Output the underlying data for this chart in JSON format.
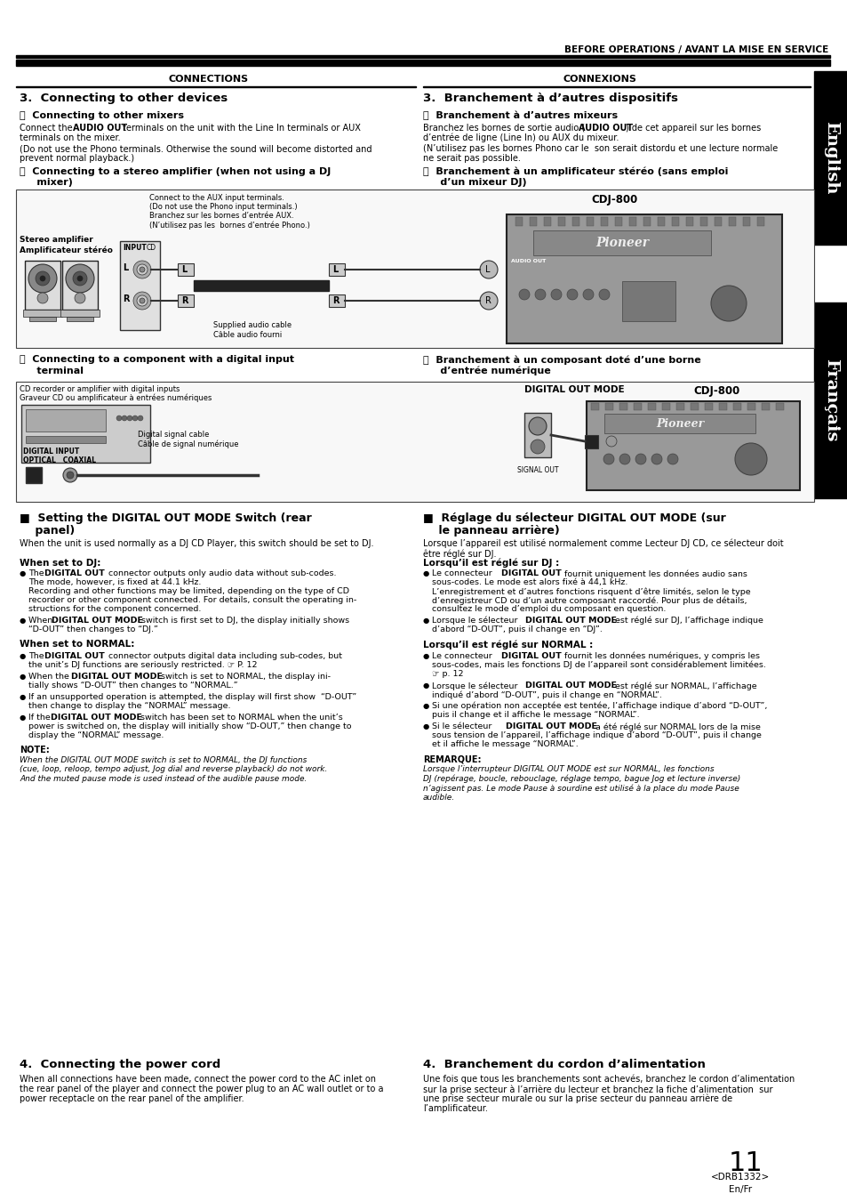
{
  "page_width": 9.54,
  "page_height": 13.51,
  "bg_color": "#ffffff",
  "header_text": "BEFORE OPERATIONS / AVANT LA MISE EN SERVICE",
  "left_column_header": "CONNECTIONS",
  "right_column_header": "CONNEXIONS",
  "section3_left_title": "3.  Connecting to other devices",
  "section3_right_title": "3.  Branchement à d’autres dispositifs",
  "sectionA_left_title": "Ⓐ  Connecting to other mixers",
  "sectionA_right_title": "Ⓐ  Branchement à d’autres mixeurs",
  "sectionB_left_title": "Ⓑ  Connecting to a stereo amplifier (when not using a DJ",
  "sectionB_left_title2": "     mixer)",
  "sectionB_right_title": "Ⓑ  Branchement à un amplificateur stéréo (sans emploi",
  "sectionB_right_title2": "     d’un mixeur DJ)",
  "sectionC_left_title": "Ⓒ  Connecting to a component with a digital input",
  "sectionC_left_title2": "     terminal",
  "sectionC_right_title": "Ⓒ  Branchement à un composant doté d’une borne",
  "sectionC_right_title2": "     d’entrée numérique",
  "digital_out_left_title": "■  Setting the DIGITAL OUT MODE Switch (rear",
  "digital_out_left_title2": "    panel)",
  "digital_out_right_title": "■  Réglage du sélecteur DIGITAL OUT MODE (sur",
  "digital_out_right_title2": "    le panneau arrière)",
  "section4_left_title": "4.  Connecting the power cord",
  "section4_right_title": "4.  Branchement du cordon d’alimentation",
  "page_number": "11",
  "model_code": "<DRB1332>",
  "lang_code": "En/Fr"
}
